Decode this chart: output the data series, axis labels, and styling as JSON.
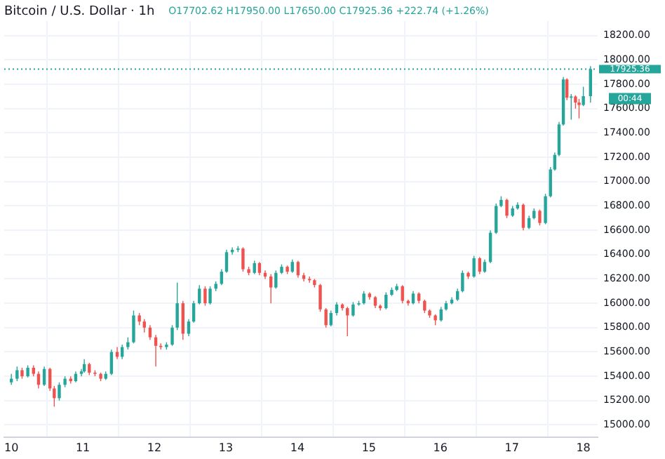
{
  "chart_data": {
    "type": "candlestick",
    "title": "Bitcoin / U.S. Dollar · 1h",
    "subtitle": "O17702.62 H17950.00 L17650.00 C17925.36 +222.74 (+1.26%)",
    "x": [
      10.0,
      10.08,
      10.15,
      10.23,
      10.31,
      10.38,
      10.46,
      10.54,
      10.6,
      10.67,
      10.75,
      10.83,
      10.9,
      10.98,
      11.02,
      11.09,
      11.17,
      11.25,
      11.32,
      11.4,
      11.48,
      11.55,
      11.63,
      11.71,
      11.79,
      11.86,
      11.94,
      12.02,
      12.09,
      12.17,
      12.25,
      12.32,
      12.4,
      12.48,
      12.55,
      12.63,
      12.71,
      12.78,
      12.86,
      12.94,
      13.01,
      13.09,
      13.17,
      13.24,
      13.32,
      13.4,
      13.47,
      13.55,
      13.63,
      13.7,
      13.78,
      13.86,
      13.93,
      14.01,
      14.09,
      14.17,
      14.24,
      14.32,
      14.4,
      14.47,
      14.55,
      14.63,
      14.7,
      14.78,
      14.86,
      14.93,
      15.01,
      15.09,
      15.16,
      15.24,
      15.32,
      15.39,
      15.47,
      15.55,
      15.62,
      15.7,
      15.78,
      15.85,
      15.93,
      16.01,
      16.08,
      16.16,
      16.24,
      16.31,
      16.39,
      16.47,
      16.55,
      16.62,
      16.7,
      16.78,
      16.85,
      16.93,
      17.01,
      17.08,
      17.16,
      17.24,
      17.31,
      17.39,
      17.47,
      17.54,
      17.6,
      17.66,
      17.72,
      17.77,
      17.83,
      17.89,
      17.94,
      18.0,
      18.1
    ],
    "ohlc": [
      [
        15350,
        15420,
        15330,
        15380
      ],
      [
        15380,
        15480,
        15360,
        15450
      ],
      [
        15450,
        15470,
        15380,
        15400
      ],
      [
        15400,
        15490,
        15390,
        15470
      ],
      [
        15470,
        15490,
        15400,
        15420
      ],
      [
        15420,
        15440,
        15300,
        15330
      ],
      [
        15330,
        15480,
        15320,
        15460
      ],
      [
        15460,
        15470,
        15280,
        15300
      ],
      [
        15300,
        15320,
        15150,
        15220
      ],
      [
        15220,
        15350,
        15200,
        15330
      ],
      [
        15330,
        15400,
        15310,
        15380
      ],
      [
        15380,
        15400,
        15340,
        15360
      ],
      [
        15360,
        15440,
        15350,
        15420
      ],
      [
        15420,
        15460,
        15400,
        15440
      ],
      [
        15440,
        15540,
        15430,
        15500
      ],
      [
        15500,
        15510,
        15410,
        15430
      ],
      [
        15430,
        15450,
        15400,
        15420
      ],
      [
        15420,
        15430,
        15360,
        15380
      ],
      [
        15380,
        15440,
        15370,
        15420
      ],
      [
        15420,
        15620,
        15410,
        15600
      ],
      [
        15600,
        15640,
        15540,
        15560
      ],
      [
        15560,
        15660,
        15540,
        15640
      ],
      [
        15640,
        15720,
        15620,
        15680
      ],
      [
        15680,
        15940,
        15670,
        15900
      ],
      [
        15900,
        15920,
        15820,
        15850
      ],
      [
        15850,
        15870,
        15760,
        15800
      ],
      [
        15800,
        15820,
        15700,
        15720
      ],
      [
        15720,
        15740,
        15480,
        15650
      ],
      [
        15650,
        15670,
        15620,
        15640
      ],
      [
        15640,
        15680,
        15620,
        15660
      ],
      [
        15660,
        15820,
        15650,
        15800
      ],
      [
        15800,
        16170,
        15780,
        16000
      ],
      [
        16000,
        16020,
        15700,
        15750
      ],
      [
        15750,
        15870,
        15730,
        15850
      ],
      [
        15850,
        16020,
        15840,
        16000
      ],
      [
        16000,
        16150,
        15990,
        16120
      ],
      [
        16120,
        16140,
        15980,
        16000
      ],
      [
        16000,
        16140,
        15990,
        16120
      ],
      [
        16120,
        16180,
        16100,
        16160
      ],
      [
        16160,
        16280,
        16150,
        16260
      ],
      [
        16260,
        16440,
        16250,
        16420
      ],
      [
        16420,
        16460,
        16400,
        16440
      ],
      [
        16440,
        16470,
        16420,
        16450
      ],
      [
        16450,
        16460,
        16260,
        16280
      ],
      [
        16280,
        16300,
        16230,
        16250
      ],
      [
        16250,
        16350,
        16240,
        16330
      ],
      [
        16330,
        16340,
        16230,
        16250
      ],
      [
        16250,
        16270,
        16200,
        16220
      ],
      [
        16220,
        16240,
        16000,
        16130
      ],
      [
        16130,
        16270,
        16120,
        16250
      ],
      [
        16250,
        16320,
        16240,
        16300
      ],
      [
        16300,
        16310,
        16240,
        16260
      ],
      [
        16260,
        16360,
        16250,
        16340
      ],
      [
        16340,
        16350,
        16210,
        16230
      ],
      [
        16230,
        16250,
        16180,
        16200
      ],
      [
        16200,
        16220,
        16170,
        16190
      ],
      [
        16190,
        16200,
        16130,
        16150
      ],
      [
        16150,
        16160,
        15930,
        15950
      ],
      [
        15950,
        15960,
        15800,
        15820
      ],
      [
        15820,
        15940,
        15810,
        15920
      ],
      [
        15920,
        16010,
        15900,
        15990
      ],
      [
        15990,
        16000,
        15940,
        15960
      ],
      [
        15960,
        15970,
        15730,
        15900
      ],
      [
        15900,
        16010,
        15890,
        15990
      ],
      [
        15990,
        16020,
        15980,
        16000
      ],
      [
        16000,
        16100,
        15990,
        16080
      ],
      [
        16080,
        16090,
        16030,
        16050
      ],
      [
        16050,
        16060,
        15960,
        15980
      ],
      [
        15980,
        15990,
        15940,
        15960
      ],
      [
        15960,
        16090,
        15950,
        16070
      ],
      [
        16070,
        16130,
        16060,
        16110
      ],
      [
        16110,
        16160,
        16100,
        16140
      ],
      [
        16140,
        16150,
        16000,
        16020
      ],
      [
        16020,
        16030,
        15980,
        16000
      ],
      [
        16000,
        16100,
        15990,
        16080
      ],
      [
        16080,
        16090,
        16000,
        16020
      ],
      [
        16020,
        16030,
        15920,
        15940
      ],
      [
        15940,
        15950,
        15880,
        15900
      ],
      [
        15900,
        15910,
        15820,
        15860
      ],
      [
        15860,
        15970,
        15850,
        15950
      ],
      [
        15950,
        16020,
        15940,
        16000
      ],
      [
        16000,
        16050,
        15990,
        16030
      ],
      [
        16030,
        16120,
        16020,
        16100
      ],
      [
        16100,
        16270,
        16090,
        16250
      ],
      [
        16250,
        16260,
        16200,
        16220
      ],
      [
        16220,
        16390,
        16210,
        16370
      ],
      [
        16370,
        16380,
        16240,
        16260
      ],
      [
        16260,
        16360,
        16250,
        16340
      ],
      [
        16340,
        16600,
        16330,
        16580
      ],
      [
        16580,
        16820,
        16570,
        16800
      ],
      [
        16800,
        16880,
        16790,
        16850
      ],
      [
        16850,
        16860,
        16700,
        16720
      ],
      [
        16720,
        16800,
        16710,
        16780
      ],
      [
        16780,
        16830,
        16770,
        16810
      ],
      [
        16810,
        16820,
        16600,
        16620
      ],
      [
        16620,
        16720,
        16610,
        16700
      ],
      [
        16700,
        16780,
        16690,
        16760
      ],
      [
        16760,
        16770,
        16640,
        16660
      ],
      [
        16660,
        16900,
        16650,
        16880
      ],
      [
        16880,
        17120,
        16870,
        17100
      ],
      [
        17100,
        17240,
        17090,
        17220
      ],
      [
        17220,
        17490,
        17210,
        17470
      ],
      [
        17470,
        17860,
        17460,
        17840
      ],
      [
        17840,
        17850,
        17670,
        17690
      ],
      [
        17690,
        17720,
        17510,
        17700
      ],
      [
        17700,
        17710,
        17600,
        17650
      ],
      [
        17650,
        17680,
        17520,
        17630
      ],
      [
        17630,
        17780,
        17620,
        17702.62
      ],
      [
        17702.62,
        17950,
        17650,
        17925.36
      ]
    ],
    "colors": [
      "#26a69a",
      "#26a69a",
      "#ef5350",
      "#26a69a",
      "#ef5350",
      "#ef5350",
      "#26a69a",
      "#ef5350",
      "#ef5350",
      "#26a69a",
      "#26a69a",
      "#ef5350",
      "#26a69a",
      "#26a69a",
      "#26a69a",
      "#ef5350",
      "#ef5350",
      "#ef5350",
      "#26a69a",
      "#26a69a",
      "#ef5350",
      "#26a69a",
      "#26a69a",
      "#26a69a",
      "#ef5350",
      "#ef5350",
      "#ef5350",
      "#ef5350",
      "#ef5350",
      "#26a69a",
      "#26a69a",
      "#26a69a",
      "#ef5350",
      "#26a69a",
      "#26a69a",
      "#26a69a",
      "#ef5350",
      "#26a69a",
      "#26a69a",
      "#26a69a",
      "#26a69a",
      "#26a69a",
      "#26a69a",
      "#ef5350",
      "#ef5350",
      "#26a69a",
      "#ef5350",
      "#ef5350",
      "#ef5350",
      "#26a69a",
      "#26a69a",
      "#ef5350",
      "#26a69a",
      "#ef5350",
      "#ef5350",
      "#ef5350",
      "#ef5350",
      "#ef5350",
      "#ef5350",
      "#26a69a",
      "#26a69a",
      "#ef5350",
      "#ef5350",
      "#26a69a",
      "#26a69a",
      "#26a69a",
      "#ef5350",
      "#ef5350",
      "#ef5350",
      "#26a69a",
      "#26a69a",
      "#26a69a",
      "#ef5350",
      "#ef5350",
      "#26a69a",
      "#ef5350",
      "#ef5350",
      "#ef5350",
      "#ef5350",
      "#26a69a",
      "#26a69a",
      "#26a69a",
      "#26a69a",
      "#26a69a",
      "#ef5350",
      "#26a69a",
      "#ef5350",
      "#26a69a",
      "#26a69a",
      "#26a69a",
      "#26a69a",
      "#ef5350",
      "#26a69a",
      "#26a69a",
      "#ef5350",
      "#26a69a",
      "#26a69a",
      "#ef5350",
      "#26a69a",
      "#26a69a",
      "#26a69a",
      "#26a69a",
      "#26a69a",
      "#ef5350",
      "#26a69a",
      "#ef5350",
      "#ef5350",
      "#26a69a",
      "#26a69a"
    ],
    "xlim": [
      9.9,
      18.2
    ],
    "xticks": [
      10,
      11,
      12,
      13,
      14,
      15,
      16,
      17,
      18
    ],
    "ylim": [
      14900,
      18320
    ],
    "yticks": [
      {
        "value": 15000,
        "label": "15000.00"
      },
      {
        "value": 15200,
        "label": "15200.00"
      },
      {
        "value": 15400,
        "label": "15400.00"
      },
      {
        "value": 15600,
        "label": "15600.00"
      },
      {
        "value": 15800,
        "label": "15800.00"
      },
      {
        "value": 16000,
        "label": "16000.00"
      },
      {
        "value": 16200,
        "label": "16200.00"
      },
      {
        "value": 16400,
        "label": "16400.00"
      },
      {
        "value": 16600,
        "label": "16600.00"
      },
      {
        "value": 16800,
        "label": "16800.00"
      },
      {
        "value": 17000,
        "label": "17000.00"
      },
      {
        "value": 17200,
        "label": "17200.00"
      },
      {
        "value": 17400,
        "label": "17400.00"
      },
      {
        "value": 17600,
        "label": "17600.00"
      },
      {
        "value": 17800,
        "label": "17800.00"
      },
      {
        "value": 18000,
        "label": "18000.00"
      },
      {
        "value": 18200,
        "label": "18200.00"
      }
    ],
    "ref_lines": [
      {
        "axis": "y",
        "value": 17925.36,
        "label": "17925.36",
        "color": "#26a69a",
        "line_style": "dotted"
      }
    ],
    "annotations": [
      "00:44"
    ],
    "grid": true,
    "legend": false
  }
}
